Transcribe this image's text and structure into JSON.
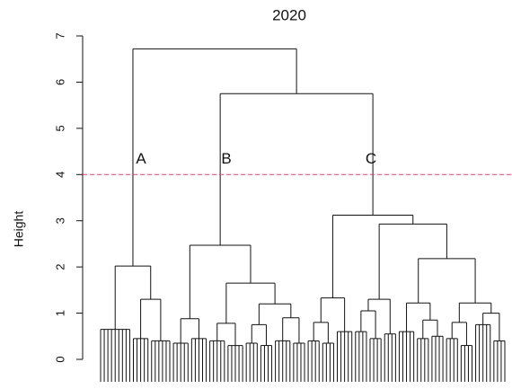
{
  "chart_data": {
    "type": "dendrogram",
    "title": "2020",
    "ylabel": "Height",
    "ylim": [
      0,
      7
    ],
    "yticks": [
      0,
      1,
      2,
      3,
      4,
      5,
      6,
      7
    ],
    "cut_height": 4,
    "cut_color": "#e0456a",
    "annotations": [
      "A",
      "B",
      "C"
    ],
    "tree": {
      "height": 6.72,
      "children": [
        {
          "height": 2.02,
          "children": [
            {
              "height": 0.65,
              "leaves": 9
            },
            {
              "height": 1.3,
              "children": [
                {
                  "height": 0.45,
                  "leaves": 5
                },
                {
                  "height": 0.4,
                  "leaves": 6
                }
              ]
            }
          ]
        },
        {
          "height": 5.75,
          "children": [
            {
              "height": 2.47,
              "children": [
                {
                  "height": 0.88,
                  "children": [
                    {
                      "height": 0.35,
                      "leaves": 5
                    },
                    {
                      "height": 0.45,
                      "leaves": 5
                    }
                  ]
                },
                {
                  "height": 1.65,
                  "children": [
                    {
                      "height": 0.78,
                      "children": [
                        {
                          "height": 0.4,
                          "leaves": 5
                        },
                        {
                          "height": 0.3,
                          "leaves": 5
                        }
                      ]
                    },
                    {
                      "height": 1.2,
                      "children": [
                        {
                          "height": 0.75,
                          "children": [
                            {
                              "height": 0.35,
                              "leaves": 4
                            },
                            {
                              "height": 0.3,
                              "leaves": 4
                            }
                          ]
                        },
                        {
                          "height": 0.9,
                          "children": [
                            {
                              "height": 0.4,
                              "leaves": 5
                            },
                            {
                              "height": 0.35,
                              "leaves": 4
                            }
                          ]
                        }
                      ]
                    }
                  ]
                }
              ]
            },
            {
              "height": 3.12,
              "children": [
                {
                  "height": 1.33,
                  "children": [
                    {
                      "height": 0.8,
                      "children": [
                        {
                          "height": 0.4,
                          "leaves": 4
                        },
                        {
                          "height": 0.35,
                          "leaves": 4
                        }
                      ]
                    },
                    {
                      "height": 0.6,
                      "leaves": 5
                    }
                  ]
                },
                {
                  "height": 2.93,
                  "children": [
                    {
                      "height": 1.3,
                      "children": [
                        {
                          "height": 1.05,
                          "children": [
                            {
                              "height": 0.6,
                              "leaves": 4
                            },
                            {
                              "height": 0.45,
                              "leaves": 4
                            }
                          ]
                        },
                        {
                          "height": 0.55,
                          "leaves": 4
                        }
                      ]
                    },
                    {
                      "height": 2.18,
                      "children": [
                        {
                          "height": 1.22,
                          "children": [
                            {
                              "height": 0.6,
                              "leaves": 5
                            },
                            {
                              "height": 0.85,
                              "children": [
                                {
                                  "height": 0.45,
                                  "leaves": 4
                                },
                                {
                                  "height": 0.5,
                                  "leaves": 4
                                }
                              ]
                            }
                          ]
                        },
                        {
                          "height": 1.22,
                          "children": [
                            {
                              "height": 0.8,
                              "children": [
                                {
                                  "height": 0.45,
                                  "leaves": 4
                                },
                                {
                                  "height": 0.3,
                                  "leaves": 4
                                }
                              ]
                            },
                            {
                              "height": 1.0,
                              "children": [
                                {
                                  "height": 0.75,
                                  "leaves": 5
                                },
                                {
                                  "height": 0.4,
                                  "leaves": 4
                                }
                              ]
                            }
                          ]
                        }
                      ]
                    }
                  ]
                }
              ]
            }
          ]
        }
      ]
    }
  }
}
